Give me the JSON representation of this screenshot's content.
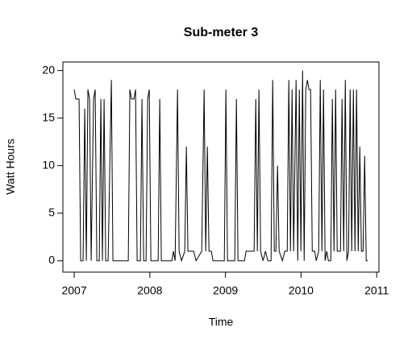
{
  "chart_data": {
    "type": "line",
    "title": "Sub-meter 3",
    "x_label": "Time",
    "y_label": "Watt Hours",
    "color": "#000000",
    "x": [
      2007.0,
      2007.021,
      2007.064,
      2007.085,
      2007.117,
      2007.139,
      2007.16,
      2007.181,
      2007.203,
      2007.224,
      2007.256,
      2007.277,
      2007.299,
      2007.331,
      2007.352,
      2007.373,
      2007.395,
      2007.416,
      2007.448,
      2007.491,
      2007.512,
      2007.715,
      2007.736,
      2007.758,
      2007.79,
      2007.811,
      2007.832,
      2007.875,
      2007.896,
      2007.918,
      2007.95,
      2007.971,
      2007.992,
      2008.014,
      2008.11,
      2008.131,
      2008.152,
      2008.291,
      2008.312,
      2008.334,
      2008.366,
      2008.387,
      2008.419,
      2008.462,
      2008.483,
      2008.504,
      2008.579,
      2008.611,
      2008.686,
      2008.718,
      2008.739,
      2008.761,
      2008.782,
      2008.814,
      2008.835,
      2008.985,
      2009.006,
      2009.027,
      2009.123,
      2009.145,
      2009.166,
      2009.251,
      2009.273,
      2009.379,
      2009.401,
      2009.422,
      2009.443,
      2009.465,
      2009.497,
      2009.529,
      2009.561,
      2009.603,
      2009.625,
      2009.646,
      2009.667,
      2009.689,
      2009.71,
      2009.753,
      2009.785,
      2009.817,
      2009.838,
      2009.86,
      2009.881,
      2009.902,
      2009.934,
      2009.956,
      2009.977,
      2009.998,
      2010.02,
      2010.041,
      2010.062,
      2010.084,
      2010.105,
      2010.126,
      2010.148,
      2010.18,
      2010.201,
      2010.233,
      2010.254,
      2010.276,
      2010.297,
      2010.318,
      2010.34,
      2010.361,
      2010.393,
      2010.414,
      2010.436,
      2010.457,
      2010.478,
      2010.521,
      2010.542,
      2010.564,
      2010.585,
      2010.606,
      2010.628,
      2010.649,
      2010.67,
      2010.692,
      2010.713,
      2010.734,
      2010.756,
      2010.777,
      2010.798,
      2010.82,
      2010.841,
      2010.862,
      2010.884
    ],
    "values": [
      18,
      17,
      17,
      0,
      0,
      16,
      0,
      18,
      17,
      0,
      17,
      18,
      0,
      0,
      17,
      0,
      17,
      0,
      0,
      19,
      0,
      0,
      18,
      17,
      17,
      18,
      0,
      0,
      17,
      0,
      0,
      17,
      18,
      0,
      0,
      17,
      0,
      0,
      1,
      0,
      18,
      1,
      0,
      1,
      12,
      1,
      1,
      0,
      1,
      18,
      1,
      12,
      1,
      1,
      0,
      0,
      18,
      0,
      0,
      17,
      0,
      0,
      1,
      1,
      17,
      1,
      18,
      1,
      0,
      1,
      0,
      0,
      19,
      1,
      1,
      10,
      1,
      0,
      1,
      1,
      19,
      1,
      18,
      1,
      19,
      0,
      18,
      1,
      20,
      0,
      18,
      19,
      18,
      18,
      1,
      1,
      0,
      1,
      19,
      1,
      18,
      0,
      1,
      0,
      0,
      17,
      1,
      18,
      1,
      1,
      17,
      1,
      19,
      0,
      1,
      18,
      1,
      18,
      1,
      18,
      1,
      12,
      1,
      1,
      11,
      0,
      0
    ],
    "xlim": [
      2006.85,
      2011.03
    ],
    "ylim": [
      -1.2,
      20.9
    ],
    "xticks": [
      2007,
      2008,
      2009,
      2010,
      2011
    ],
    "yticks": [
      0,
      5,
      10,
      15,
      20
    ]
  }
}
